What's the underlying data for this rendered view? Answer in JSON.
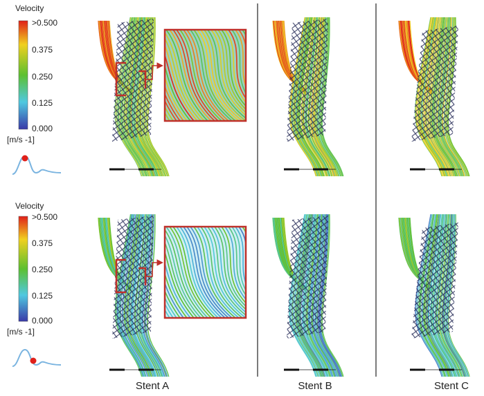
{
  "colorbars": [
    {
      "title": "Velocity",
      "ticks": [
        ">0.500",
        "0.375",
        "0.250",
        "0.125",
        "0.000"
      ],
      "unit": "[m/s -1]"
    },
    {
      "title": "Velocity",
      "ticks": [
        ">0.500",
        "0.375",
        "0.250",
        "0.125",
        "0.000"
      ],
      "unit": "[m/s -1]"
    }
  ],
  "columns": [
    "Stent A",
    "Stent B",
    "Stent C"
  ]
}
